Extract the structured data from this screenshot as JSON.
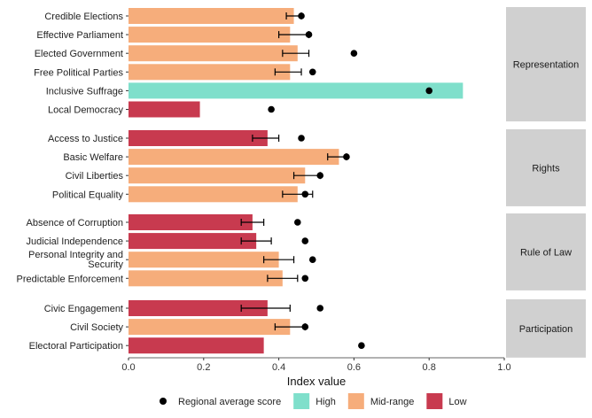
{
  "chart_data": {
    "type": "bar",
    "orientation": "horizontal",
    "xlabel": "Index value",
    "xlim": [
      0,
      1
    ],
    "xticks": [
      "0.0",
      "0.2",
      "0.4",
      "0.6",
      "0.8",
      "1.0"
    ],
    "grid": false,
    "legend_position": "bottom",
    "legend": {
      "items": [
        {
          "label": "Regional average score",
          "kind": "point",
          "color": "#000000"
        },
        {
          "label": "High",
          "kind": "fill",
          "color": "#7fdfcb"
        },
        {
          "label": "Mid-range",
          "kind": "fill",
          "color": "#f6ad7b"
        },
        {
          "label": "Low",
          "kind": "fill",
          "color": "#c83a4f"
        }
      ]
    },
    "colors": {
      "High": "#7fdfcb",
      "Mid-range": "#f6ad7b",
      "Low": "#c83a4f",
      "facet_strip": "#d0d0d0"
    },
    "facets": [
      {
        "label": "Representation",
        "rows": [
          {
            "label": "Credible Elections",
            "value": 0.44,
            "level": "Mid-range",
            "err": [
              0.42,
              0.46
            ],
            "avg": 0.46
          },
          {
            "label": "Effective Parliament",
            "value": 0.43,
            "level": "Mid-range",
            "err": [
              0.4,
              0.48
            ],
            "avg": 0.48
          },
          {
            "label": "Elected Government",
            "value": 0.45,
            "level": "Mid-range",
            "err": [
              0.41,
              0.48
            ],
            "avg": 0.6
          },
          {
            "label": "Free Political Parties",
            "value": 0.43,
            "level": "Mid-range",
            "err": [
              0.39,
              0.46
            ],
            "avg": 0.49
          },
          {
            "label": "Inclusive Suffrage",
            "value": 0.89,
            "level": "High",
            "err": null,
            "avg": 0.8
          },
          {
            "label": "Local Democracy",
            "value": 0.19,
            "level": "Low",
            "err": null,
            "avg": 0.38
          }
        ]
      },
      {
        "label": "Rights",
        "rows": [
          {
            "label": "Access to Justice",
            "value": 0.37,
            "level": "Low",
            "err": [
              0.33,
              0.4
            ],
            "avg": 0.46
          },
          {
            "label": "Basic Welfare",
            "value": 0.56,
            "level": "Mid-range",
            "err": [
              0.53,
              0.58
            ],
            "avg": 0.58
          },
          {
            "label": "Civil Liberties",
            "value": 0.47,
            "level": "Mid-range",
            "err": [
              0.44,
              0.51
            ],
            "avg": 0.51
          },
          {
            "label": "Political Equality",
            "value": 0.45,
            "level": "Mid-range",
            "err": [
              0.41,
              0.49
            ],
            "avg": 0.47
          }
        ]
      },
      {
        "label": "Rule of Law",
        "rows": [
          {
            "label": "Absence of Corruption",
            "value": 0.33,
            "level": "Low",
            "err": [
              0.3,
              0.36
            ],
            "avg": 0.45
          },
          {
            "label": "Judicial Independence",
            "value": 0.34,
            "level": "Low",
            "err": [
              0.3,
              0.38
            ],
            "avg": 0.47
          },
          {
            "label": "Personal Integrity and Security",
            "label_lines": [
              "Personal Integrity and",
              "Security"
            ],
            "value": 0.4,
            "level": "Mid-range",
            "err": [
              0.36,
              0.44
            ],
            "avg": 0.49
          },
          {
            "label": "Predictable Enforcement",
            "value": 0.41,
            "level": "Mid-range",
            "err": [
              0.37,
              0.45
            ],
            "avg": 0.47
          }
        ]
      },
      {
        "label": "Participation",
        "rows": [
          {
            "label": "Civic Engagement",
            "value": 0.37,
            "level": "Low",
            "err": [
              0.3,
              0.43
            ],
            "avg": 0.51
          },
          {
            "label": "Civil Society",
            "value": 0.43,
            "level": "Mid-range",
            "err": [
              0.39,
              0.47
            ],
            "avg": 0.47
          },
          {
            "label": "Electoral Participation",
            "value": 0.36,
            "level": "Low",
            "err": null,
            "avg": 0.62
          }
        ]
      }
    ]
  }
}
